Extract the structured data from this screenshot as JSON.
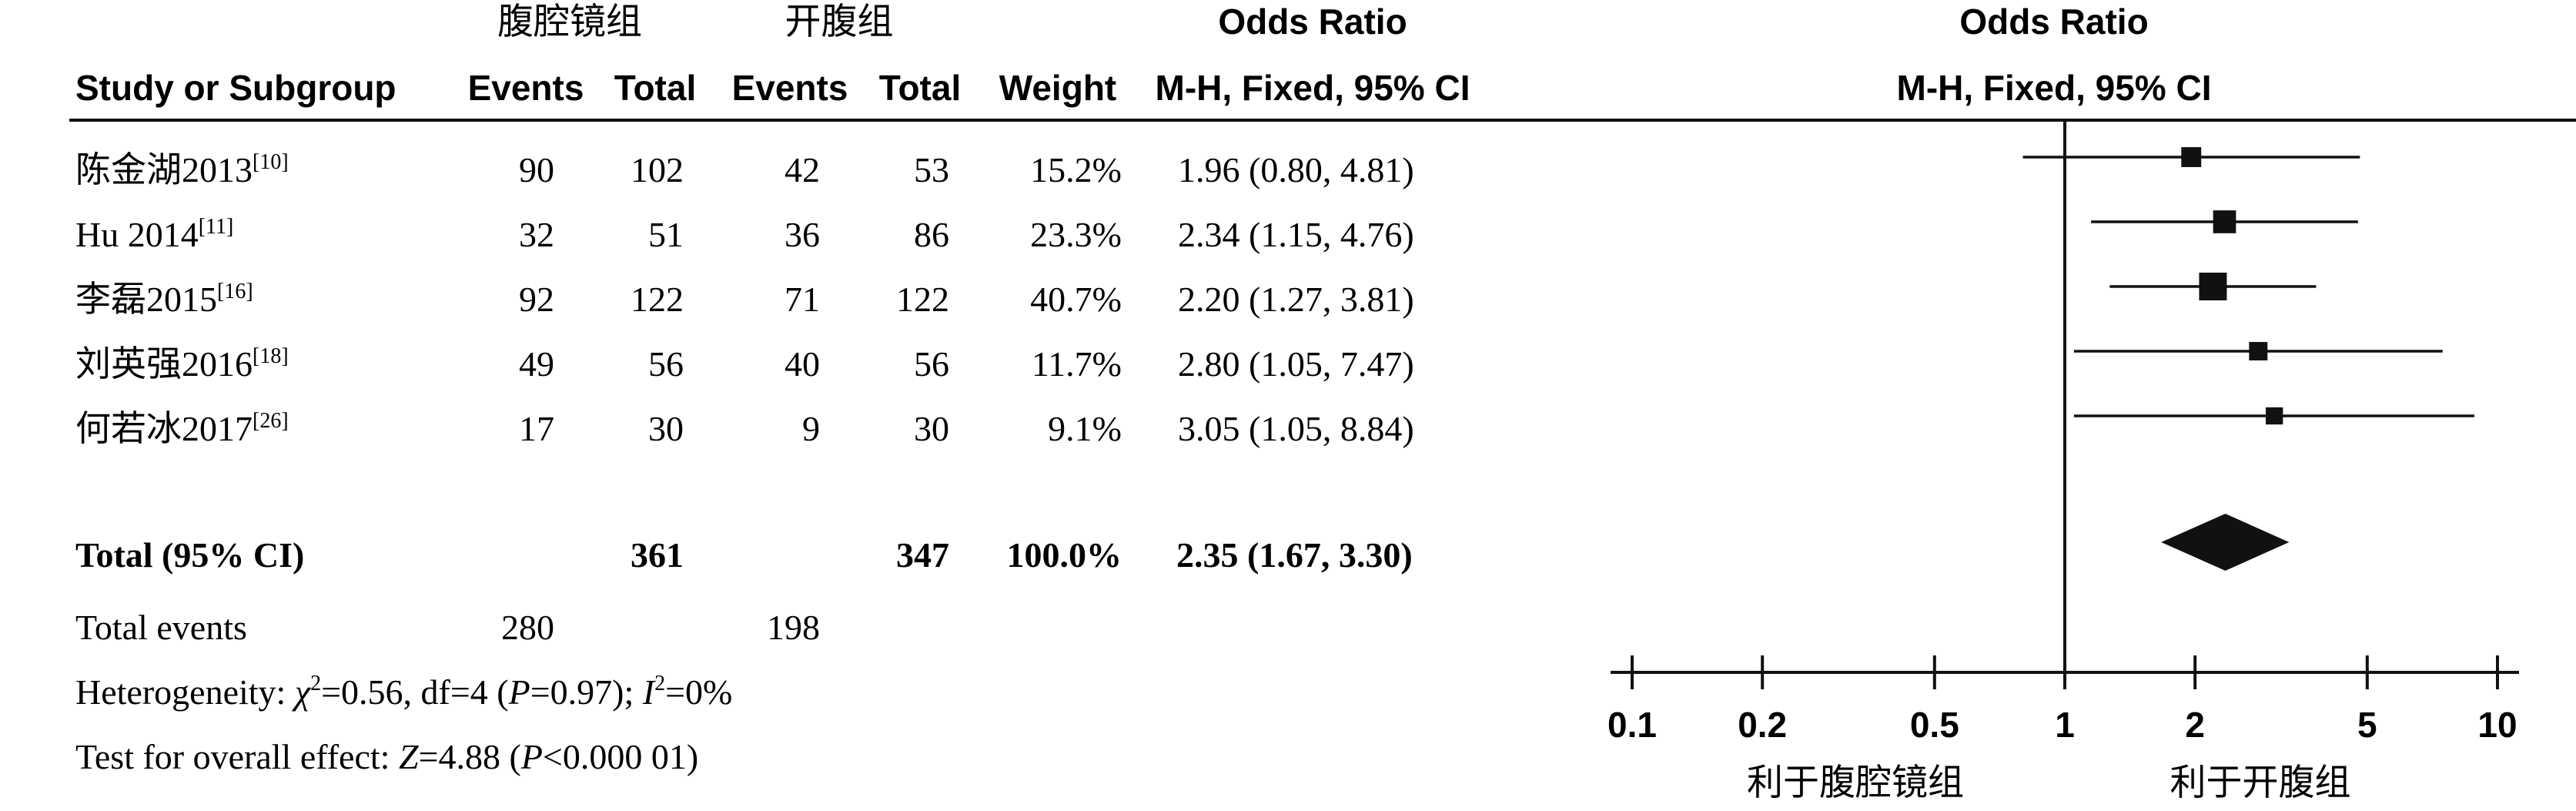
{
  "header": {
    "group_experimental": "腹腔镜组",
    "group_control": "开腹组",
    "col_study": "Study or Subgroup",
    "col_events_exp": "Events",
    "col_total_exp": "Total",
    "col_events_ctl": "Events",
    "col_total_ctl": "Total",
    "col_weight": "Weight",
    "col_or_title": "Odds Ratio",
    "col_or_method": "M-H, Fixed, 95% CI",
    "plot_title": "Odds Ratio",
    "plot_method": "M-H, Fixed, 95% CI"
  },
  "studies": [
    {
      "name": "陈金湖2013",
      "ref": "[10]",
      "events_exp": "90",
      "total_exp": "102",
      "events_ctl": "42",
      "total_ctl": "53",
      "weight": "15.2%",
      "or_text": "1.96 (0.80, 4.81)"
    },
    {
      "name": "Hu 2014",
      "ref": "[11]",
      "events_exp": "32",
      "total_exp": "51",
      "events_ctl": "36",
      "total_ctl": "86",
      "weight": "23.3%",
      "or_text": "2.34 (1.15, 4.76)"
    },
    {
      "name": "李磊2015",
      "ref": "[16]",
      "events_exp": "92",
      "total_exp": "122",
      "events_ctl": "71",
      "total_ctl": "122",
      "weight": "40.7%",
      "or_text": "2.20 (1.27, 3.81)"
    },
    {
      "name": "刘英强2016",
      "ref": "[18]",
      "events_exp": "49",
      "total_exp": "56",
      "events_ctl": "40",
      "total_ctl": "56",
      "weight": "11.7%",
      "or_text": "2.80 (1.05, 7.47)"
    },
    {
      "name": "何若冰2017",
      "ref": "[26]",
      "events_exp": "17",
      "total_exp": "30",
      "events_ctl": "9",
      "total_ctl": "30",
      "weight": "9.1%",
      "or_text": "3.05 (1.05, 8.84)"
    }
  ],
  "total": {
    "label": "Total (95% CI)",
    "total_exp": "361",
    "total_ctl": "347",
    "weight": "100.0%",
    "or_text": "2.35 (1.67, 3.30)"
  },
  "total_events": {
    "label": "Total events",
    "events_exp": "280",
    "events_ctl": "198"
  },
  "heterogeneity": {
    "prefix": "Heterogeneity: ",
    "chi_symbol": "χ",
    "chi_sup": "2",
    "mid1": "=0.56, df=4 (",
    "p_symbol": "P",
    "mid2": "=0.97); ",
    "i_symbol": "I",
    "i_sup": "2",
    "suffix": "=0%"
  },
  "overall_effect": {
    "prefix": "Test for overall effect: ",
    "z_symbol": "Z",
    "mid": "=4.88 (",
    "p_symbol": "P",
    "suffix": "<0.000 01)"
  },
  "axis_labels": {
    "favours_left": "利于腹腔镜组",
    "favours_right": "利于开腹组"
  },
  "chart_data": {
    "type": "forest",
    "scale": "log",
    "xlim": [
      0.1,
      10
    ],
    "ticks": [
      0.1,
      0.2,
      0.5,
      1,
      2,
      5,
      10
    ],
    "tick_labels": [
      "0.1",
      "0.2",
      "0.5",
      "1",
      "2",
      "5",
      "10"
    ],
    "reference_line": 1,
    "studies": [
      {
        "name": "陈金湖2013",
        "or": 1.96,
        "lower": 0.8,
        "upper": 4.81,
        "weight": 15.2
      },
      {
        "name": "Hu 2014",
        "or": 2.34,
        "lower": 1.15,
        "upper": 4.76,
        "weight": 23.3
      },
      {
        "name": "李磊2015",
        "or": 2.2,
        "lower": 1.27,
        "upper": 3.81,
        "weight": 40.7
      },
      {
        "name": "刘英强2016",
        "or": 2.8,
        "lower": 1.05,
        "upper": 7.47,
        "weight": 11.7
      },
      {
        "name": "何若冰2017",
        "or": 3.05,
        "lower": 1.05,
        "upper": 8.84,
        "weight": 9.1
      }
    ],
    "total": {
      "or": 2.35,
      "lower": 1.67,
      "upper": 3.3
    }
  }
}
